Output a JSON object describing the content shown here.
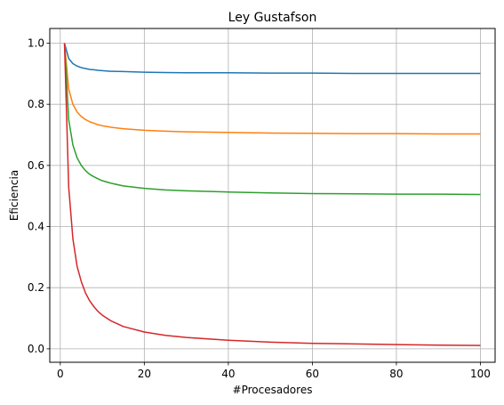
{
  "chart_data": {
    "type": "line",
    "title": "Ley Gustafson",
    "xlabel": "#Procesadores",
    "ylabel": "Eficiencia",
    "xlim": [
      -2.5,
      103.5
    ],
    "ylim": [
      -0.044,
      1.048
    ],
    "xticks": [
      {
        "value": 0,
        "label": "0"
      },
      {
        "value": 20,
        "label": "20"
      },
      {
        "value": 40,
        "label": "40"
      },
      {
        "value": 60,
        "label": "60"
      },
      {
        "value": 80,
        "label": "80"
      },
      {
        "value": 100,
        "label": "100"
      }
    ],
    "yticks": [
      {
        "value": 0.0,
        "label": "0.0"
      },
      {
        "value": 0.2,
        "label": "0.2"
      },
      {
        "value": 0.4,
        "label": "0.4"
      },
      {
        "value": 0.6,
        "label": "0.6"
      },
      {
        "value": 0.8,
        "label": "0.8"
      },
      {
        "value": 1.0,
        "label": "1.0"
      }
    ],
    "grid": true,
    "legend": "none",
    "x": [
      1,
      2,
      3,
      4,
      5,
      6,
      7,
      8,
      9,
      10,
      12,
      15,
      20,
      25,
      30,
      40,
      50,
      60,
      70,
      80,
      90,
      100
    ],
    "series": [
      {
        "color": "#1f77b4",
        "values": [
          1.0,
          0.95,
          0.933,
          0.925,
          0.92,
          0.917,
          0.914,
          0.913,
          0.911,
          0.91,
          0.908,
          0.907,
          0.905,
          0.904,
          0.903,
          0.903,
          0.902,
          0.902,
          0.901,
          0.901,
          0.901,
          0.901
        ]
      },
      {
        "color": "#ff7f0e",
        "values": [
          1.0,
          0.85,
          0.8,
          0.775,
          0.76,
          0.75,
          0.743,
          0.738,
          0.733,
          0.73,
          0.725,
          0.72,
          0.715,
          0.712,
          0.71,
          0.708,
          0.706,
          0.705,
          0.704,
          0.704,
          0.703,
          0.703
        ]
      },
      {
        "color": "#2ca02c",
        "values": [
          1.0,
          0.75,
          0.667,
          0.625,
          0.6,
          0.583,
          0.571,
          0.563,
          0.556,
          0.55,
          0.542,
          0.533,
          0.525,
          0.52,
          0.517,
          0.513,
          0.51,
          0.508,
          0.507,
          0.506,
          0.506,
          0.505
        ]
      },
      {
        "color": "#d62728",
        "values": [
          1.0,
          0.53,
          0.36,
          0.27,
          0.22,
          0.183,
          0.157,
          0.138,
          0.122,
          0.11,
          0.092,
          0.073,
          0.055,
          0.044,
          0.037,
          0.028,
          0.022,
          0.018,
          0.016,
          0.014,
          0.012,
          0.011
        ]
      }
    ]
  }
}
